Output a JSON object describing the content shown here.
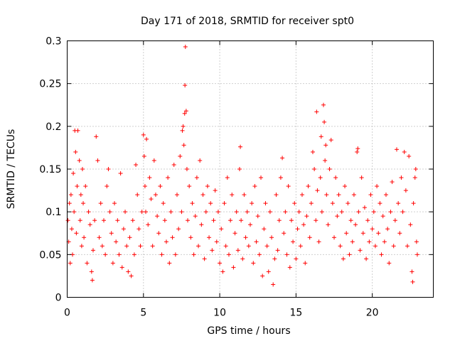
{
  "chart_data": {
    "type": "scatter",
    "title": "Day 171 of 2018, SRMTID for receiver spt0",
    "xlabel": "GPS time / hours",
    "ylabel": "SRMTID / TECUs",
    "xlim": [
      0,
      24
    ],
    "ylim": [
      0,
      0.3
    ],
    "xticks": [
      0,
      5,
      10,
      15,
      20
    ],
    "xtick_labels": [
      "0",
      "5",
      "10",
      "15",
      "20"
    ],
    "yticks": [
      0,
      0.05,
      0.1,
      0.15,
      0.2,
      0.25,
      0.3
    ],
    "ytick_labels": [
      "0",
      "0.05",
      "0.1",
      "0.15",
      "0.2",
      "0.25",
      "0.3"
    ],
    "grid": true,
    "marker": "plus",
    "series": [
      {
        "name": "SRMTID",
        "color": "#ff0000",
        "points": [
          [
            0.05,
            0.09
          ],
          [
            0.1,
            0.065
          ],
          [
            0.15,
            0.11
          ],
          [
            0.2,
            0.04
          ],
          [
            0.25,
            0.12
          ],
          [
            0.3,
            0.08
          ],
          [
            0.35,
            0.05
          ],
          [
            0.4,
            0.145
          ],
          [
            0.45,
            0.1
          ],
          [
            0.5,
            0.195
          ],
          [
            0.55,
            0.17
          ],
          [
            0.6,
            0.075
          ],
          [
            0.65,
            0.13
          ],
          [
            0.7,
            0.195
          ],
          [
            0.8,
            0.16
          ],
          [
            0.85,
            0.09
          ],
          [
            0.9,
            0.12
          ],
          [
            0.95,
            0.06
          ],
          [
            1.0,
            0.15
          ],
          [
            1.05,
            0.11
          ],
          [
            1.1,
            0.07
          ],
          [
            1.2,
            0.13
          ],
          [
            1.3,
            0.04
          ],
          [
            1.4,
            0.1
          ],
          [
            1.5,
            0.085
          ],
          [
            1.6,
            0.03
          ],
          [
            1.65,
            0.02
          ],
          [
            1.7,
            0.055
          ],
          [
            1.8,
            0.09
          ],
          [
            1.9,
            0.188
          ],
          [
            2.0,
            0.16
          ],
          [
            2.1,
            0.07
          ],
          [
            2.2,
            0.11
          ],
          [
            2.3,
            0.06
          ],
          [
            2.4,
            0.09
          ],
          [
            2.5,
            0.05
          ],
          [
            2.6,
            0.13
          ],
          [
            2.7,
            0.15
          ],
          [
            2.8,
            0.1
          ],
          [
            2.9,
            0.075
          ],
          [
            3.0,
            0.04
          ],
          [
            3.1,
            0.11
          ],
          [
            3.2,
            0.065
          ],
          [
            3.3,
            0.09
          ],
          [
            3.4,
            0.05
          ],
          [
            3.5,
            0.145
          ],
          [
            3.6,
            0.035
          ],
          [
            3.7,
            0.08
          ],
          [
            3.8,
            0.1
          ],
          [
            3.9,
            0.06
          ],
          [
            4.0,
            0.03
          ],
          [
            4.1,
            0.07
          ],
          [
            4.2,
            0.025
          ],
          [
            4.3,
            0.09
          ],
          [
            4.4,
            0.05
          ],
          [
            4.5,
            0.155
          ],
          [
            4.6,
            0.12
          ],
          [
            4.7,
            0.08
          ],
          [
            4.8,
            0.06
          ],
          [
            4.9,
            0.1
          ],
          [
            5.0,
            0.19
          ],
          [
            5.05,
            0.165
          ],
          [
            5.1,
            0.13
          ],
          [
            5.15,
            0.1
          ],
          [
            5.2,
            0.185
          ],
          [
            5.3,
            0.085
          ],
          [
            5.4,
            0.14
          ],
          [
            5.5,
            0.115
          ],
          [
            5.6,
            0.06
          ],
          [
            5.7,
            0.16
          ],
          [
            5.8,
            0.12
          ],
          [
            5.9,
            0.095
          ],
          [
            6.0,
            0.075
          ],
          [
            6.1,
            0.13
          ],
          [
            6.2,
            0.05
          ],
          [
            6.3,
            0.11
          ],
          [
            6.4,
            0.09
          ],
          [
            6.5,
            0.065
          ],
          [
            6.6,
            0.14
          ],
          [
            6.7,
            0.04
          ],
          [
            6.8,
            0.1
          ],
          [
            6.9,
            0.07
          ],
          [
            7.0,
            0.155
          ],
          [
            7.1,
            0.05
          ],
          [
            7.2,
            0.12
          ],
          [
            7.3,
            0.08
          ],
          [
            7.4,
            0.165
          ],
          [
            7.5,
            0.1
          ],
          [
            7.55,
            0.195
          ],
          [
            7.6,
            0.2
          ],
          [
            7.65,
            0.178
          ],
          [
            7.7,
            0.215
          ],
          [
            7.72,
            0.248
          ],
          [
            7.75,
            0.293
          ],
          [
            7.8,
            0.218
          ],
          [
            7.85,
            0.15
          ],
          [
            7.9,
            0.09
          ],
          [
            8.0,
            0.13
          ],
          [
            8.1,
            0.07
          ],
          [
            8.2,
            0.11
          ],
          [
            8.3,
            0.05
          ],
          [
            8.4,
            0.095
          ],
          [
            8.5,
            0.14
          ],
          [
            8.6,
            0.06
          ],
          [
            8.7,
            0.16
          ],
          [
            8.8,
            0.085
          ],
          [
            8.9,
            0.12
          ],
          [
            9.0,
            0.045
          ],
          [
            9.1,
            0.1
          ],
          [
            9.2,
            0.13
          ],
          [
            9.3,
            0.07
          ],
          [
            9.4,
            0.11
          ],
          [
            9.5,
            0.055
          ],
          [
            9.6,
            0.09
          ],
          [
            9.7,
            0.125
          ],
          [
            9.8,
            0.065
          ],
          [
            9.9,
            0.1
          ],
          [
            10.0,
            0.04
          ],
          [
            10.1,
            0.08
          ],
          [
            10.2,
            0.03
          ],
          [
            10.3,
            0.11
          ],
          [
            10.4,
            0.06
          ],
          [
            10.5,
            0.14
          ],
          [
            10.6,
            0.05
          ],
          [
            10.7,
            0.09
          ],
          [
            10.8,
            0.12
          ],
          [
            10.9,
            0.035
          ],
          [
            11.0,
            0.075
          ],
          [
            11.1,
            0.1
          ],
          [
            11.2,
            0.055
          ],
          [
            11.3,
            0.15
          ],
          [
            11.35,
            0.176
          ],
          [
            11.4,
            0.09
          ],
          [
            11.5,
            0.045
          ],
          [
            11.6,
            0.12
          ],
          [
            11.7,
            0.07
          ],
          [
            11.8,
            0.1
          ],
          [
            11.9,
            0.06
          ],
          [
            12.0,
            0.085
          ],
          [
            12.1,
            0.11
          ],
          [
            12.2,
            0.04
          ],
          [
            12.3,
            0.13
          ],
          [
            12.4,
            0.065
          ],
          [
            12.5,
            0.095
          ],
          [
            12.6,
            0.05
          ],
          [
            12.7,
            0.14
          ],
          [
            12.8,
            0.025
          ],
          [
            12.9,
            0.08
          ],
          [
            13.0,
            0.11
          ],
          [
            13.1,
            0.06
          ],
          [
            13.2,
            0.03
          ],
          [
            13.3,
            0.1
          ],
          [
            13.4,
            0.07
          ],
          [
            13.5,
            0.015
          ],
          [
            13.6,
            0.045
          ],
          [
            13.7,
            0.12
          ],
          [
            13.8,
            0.055
          ],
          [
            13.9,
            0.09
          ],
          [
            14.0,
            0.14
          ],
          [
            14.1,
            0.163
          ],
          [
            14.2,
            0.075
          ],
          [
            14.3,
            0.1
          ],
          [
            14.4,
            0.05
          ],
          [
            14.5,
            0.13
          ],
          [
            14.6,
            0.035
          ],
          [
            14.7,
            0.09
          ],
          [
            14.8,
            0.065
          ],
          [
            14.9,
            0.11
          ],
          [
            15.0,
            0.045
          ],
          [
            15.1,
            0.08
          ],
          [
            15.2,
            0.1
          ],
          [
            15.3,
            0.06
          ],
          [
            15.4,
            0.12
          ],
          [
            15.5,
            0.085
          ],
          [
            15.6,
            0.04
          ],
          [
            15.7,
            0.095
          ],
          [
            15.8,
            0.13
          ],
          [
            15.9,
            0.07
          ],
          [
            16.0,
            0.11
          ],
          [
            16.1,
            0.17
          ],
          [
            16.2,
            0.15
          ],
          [
            16.3,
            0.09
          ],
          [
            16.35,
            0.217
          ],
          [
            16.4,
            0.125
          ],
          [
            16.5,
            0.065
          ],
          [
            16.6,
            0.14
          ],
          [
            16.65,
            0.188
          ],
          [
            16.7,
            0.1
          ],
          [
            16.8,
            0.225
          ],
          [
            16.85,
            0.205
          ],
          [
            16.9,
            0.16
          ],
          [
            16.95,
            0.178
          ],
          [
            17.0,
            0.12
          ],
          [
            17.1,
            0.085
          ],
          [
            17.2,
            0.15
          ],
          [
            17.3,
            0.184
          ],
          [
            17.4,
            0.11
          ],
          [
            17.5,
            0.07
          ],
          [
            17.6,
            0.14
          ],
          [
            17.7,
            0.095
          ],
          [
            17.8,
            0.12
          ],
          [
            17.9,
            0.06
          ],
          [
            18.0,
            0.1
          ],
          [
            18.1,
            0.045
          ],
          [
            18.2,
            0.13
          ],
          [
            18.3,
            0.075
          ],
          [
            18.4,
            0.11
          ],
          [
            18.5,
            0.05
          ],
          [
            18.6,
            0.09
          ],
          [
            18.7,
            0.065
          ],
          [
            18.8,
            0.12
          ],
          [
            18.9,
            0.085
          ],
          [
            19.0,
            0.17
          ],
          [
            19.05,
            0.174
          ],
          [
            19.1,
            0.1
          ],
          [
            19.2,
            0.055
          ],
          [
            19.3,
            0.14
          ],
          [
            19.4,
            0.075
          ],
          [
            19.5,
            0.105
          ],
          [
            19.6,
            0.045
          ],
          [
            19.7,
            0.09
          ],
          [
            19.8,
            0.065
          ],
          [
            19.9,
            0.12
          ],
          [
            20.0,
            0.08
          ],
          [
            20.1,
            0.1
          ],
          [
            20.2,
            0.06
          ],
          [
            20.3,
            0.13
          ],
          [
            20.4,
            0.075
          ],
          [
            20.5,
            0.11
          ],
          [
            20.6,
            0.05
          ],
          [
            20.7,
            0.095
          ],
          [
            20.8,
            0.065
          ],
          [
            20.9,
            0.12
          ],
          [
            21.0,
            0.08
          ],
          [
            21.1,
            0.04
          ],
          [
            21.2,
            0.1
          ],
          [
            21.3,
            0.135
          ],
          [
            21.4,
            0.06
          ],
          [
            21.5,
            0.09
          ],
          [
            21.6,
            0.173
          ],
          [
            21.7,
            0.11
          ],
          [
            21.8,
            0.075
          ],
          [
            21.9,
            0.14
          ],
          [
            22.0,
            0.1
          ],
          [
            22.1,
            0.17
          ],
          [
            22.2,
            0.125
          ],
          [
            22.3,
            0.06
          ],
          [
            22.4,
            0.165
          ],
          [
            22.5,
            0.085
          ],
          [
            22.6,
            0.03
          ],
          [
            22.65,
            0.018
          ],
          [
            22.7,
            0.11
          ],
          [
            22.8,
            0.14
          ],
          [
            22.85,
            0.15
          ],
          [
            22.9,
            0.065
          ],
          [
            22.95,
            0.05
          ]
        ]
      }
    ]
  }
}
